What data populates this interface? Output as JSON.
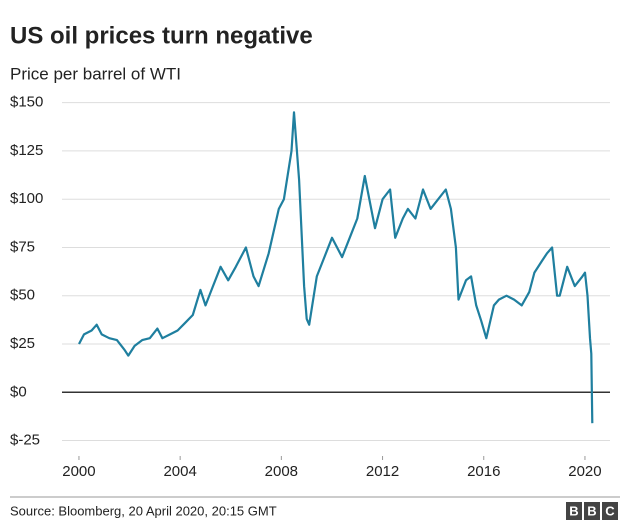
{
  "chart_data": {
    "type": "line",
    "title": "US oil prices turn negative",
    "subtitle": "Price per barrel of WTI",
    "source": "Source: Bloomberg, 20 April 2020, 20:15 GMT",
    "logo": [
      "B",
      "B",
      "C"
    ],
    "color": "#1f7f9f",
    "grid": true,
    "x": [
      2000.0,
      2000.2,
      2000.5,
      2000.7,
      2000.9,
      2001.2,
      2001.5,
      2001.8,
      2001.95,
      2002.2,
      2002.5,
      2002.8,
      2003.1,
      2003.3,
      2003.6,
      2003.9,
      2004.2,
      2004.5,
      2004.8,
      2005.0,
      2005.3,
      2005.6,
      2005.9,
      2006.2,
      2006.6,
      2006.9,
      2007.1,
      2007.5,
      2007.9,
      2008.1,
      2008.4,
      2008.5,
      2008.7,
      2008.9,
      2009.0,
      2009.1,
      2009.4,
      2009.7,
      2010.0,
      2010.4,
      2010.7,
      2011.0,
      2011.3,
      2011.7,
      2012.0,
      2012.3,
      2012.5,
      2012.8,
      2013.0,
      2013.3,
      2013.6,
      2013.9,
      2014.2,
      2014.5,
      2014.7,
      2014.9,
      2015.0,
      2015.3,
      2015.5,
      2015.7,
      2015.9,
      2016.1,
      2016.4,
      2016.6,
      2016.9,
      2017.2,
      2017.5,
      2017.8,
      2018.0,
      2018.3,
      2018.5,
      2018.7,
      2018.9,
      2019.0,
      2019.3,
      2019.6,
      2019.9,
      2020.0,
      2020.1,
      2020.2,
      2020.25,
      2020.29
    ],
    "values": [
      25,
      30,
      32,
      35,
      30,
      28,
      27,
      22,
      19,
      24,
      27,
      28,
      33,
      28,
      30,
      32,
      36,
      40,
      53,
      45,
      55,
      65,
      58,
      65,
      75,
      60,
      55,
      72,
      95,
      100,
      125,
      145,
      110,
      55,
      38,
      35,
      60,
      70,
      80,
      70,
      80,
      90,
      112,
      85,
      100,
      105,
      80,
      90,
      95,
      90,
      105,
      95,
      100,
      105,
      95,
      75,
      48,
      58,
      60,
      45,
      37,
      28,
      45,
      48,
      50,
      48,
      45,
      52,
      62,
      68,
      72,
      75,
      50,
      50,
      65,
      55,
      60,
      62,
      50,
      28,
      20,
      -16
    ],
    "xlim": [
      1999.33,
      2020.99
    ],
    "xticks": [
      2000,
      2004,
      2008,
      2012,
      2016,
      2020
    ],
    "ylim": [
      -33,
      155
    ],
    "yticks": [
      {
        "value": 150,
        "label": "$150"
      },
      {
        "value": 125,
        "label": "$125"
      },
      {
        "value": 100,
        "label": "$100"
      },
      {
        "value": 75,
        "label": "$75"
      },
      {
        "value": 50,
        "label": "$50"
      },
      {
        "value": 25,
        "label": "$25"
      },
      {
        "value": 0,
        "label": "$0"
      },
      {
        "value": -25,
        "label": "$-25"
      }
    ]
  }
}
